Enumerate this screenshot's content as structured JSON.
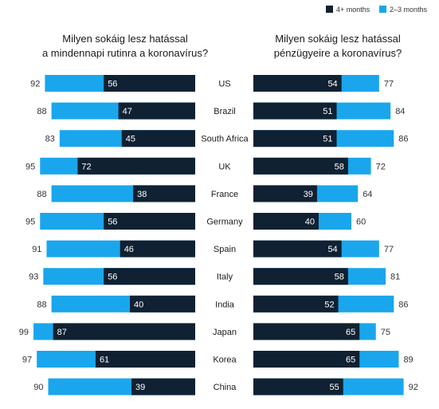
{
  "legend": {
    "items": [
      {
        "label": "4+ months",
        "color": "#0f2132"
      },
      {
        "label": "2–3 months",
        "color": "#1aa6ec"
      }
    ]
  },
  "chart_data": [
    {
      "type": "bar",
      "orientation": "horizontal-stacked",
      "title_lines": [
        "Milyen sokáig lesz hatással",
        "a mindennapi rutinra a koronavírus?"
      ],
      "categories": [
        "US",
        "Brazil",
        "South Africa",
        "UK",
        "France",
        "Germany",
        "Spain",
        "Italy",
        "India",
        "Japan",
        "Korea",
        "China"
      ],
      "series": [
        {
          "name": "4+ months",
          "color": "#0f2132",
          "values": [
            56,
            47,
            45,
            72,
            38,
            56,
            46,
            56,
            40,
            87,
            61,
            39
          ]
        }
      ],
      "totals": [
        92,
        88,
        83,
        95,
        88,
        95,
        91,
        93,
        88,
        99,
        97,
        90
      ],
      "xlim": [
        0,
        100
      ],
      "direction": "right-to-left"
    },
    {
      "type": "bar",
      "orientation": "horizontal-stacked",
      "title_lines": [
        "Milyen sokáig lesz hatással",
        "pénzügyeire a koronavírus?"
      ],
      "categories": [
        "US",
        "Brazil",
        "South Africa",
        "UK",
        "France",
        "Germany",
        "Spain",
        "Italy",
        "India",
        "Japan",
        "Korea",
        "China"
      ],
      "series": [
        {
          "name": "4+ months",
          "color": "#0f2132",
          "values": [
            54,
            51,
            51,
            58,
            39,
            40,
            54,
            58,
            52,
            65,
            65,
            55
          ]
        }
      ],
      "totals": [
        77,
        84,
        86,
        72,
        64,
        60,
        77,
        81,
        86,
        75,
        89,
        92
      ],
      "xlim": [
        0,
        100
      ],
      "direction": "left-to-right"
    }
  ]
}
